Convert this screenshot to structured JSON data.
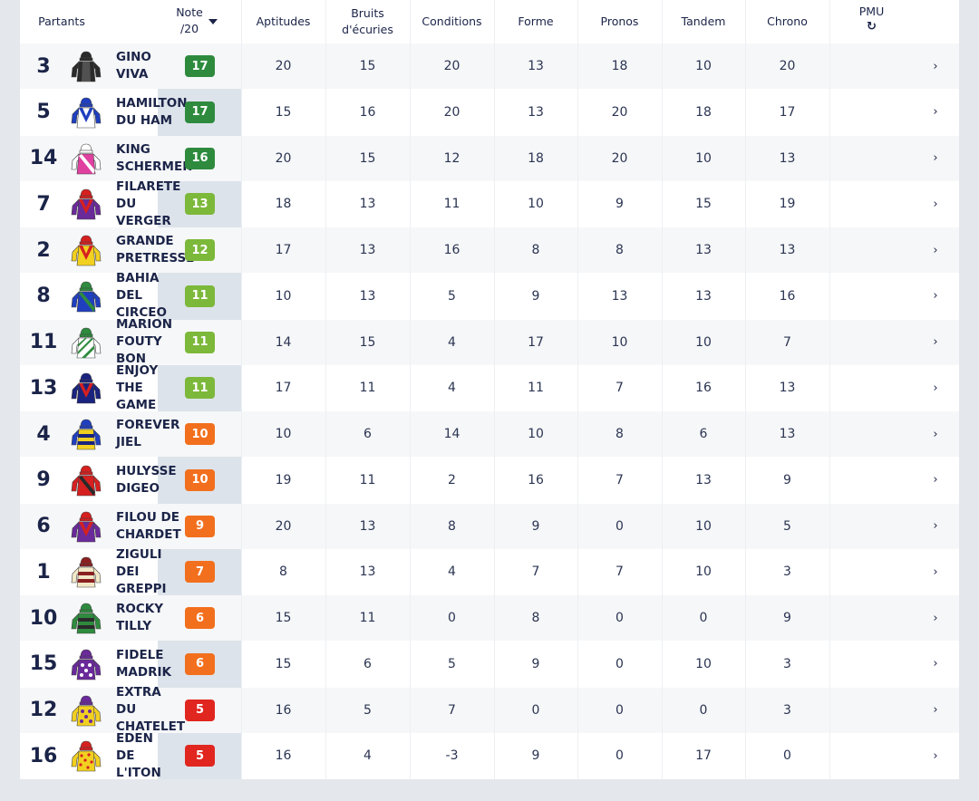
{
  "headers": {
    "partants": "Partants",
    "note_line1": "Note",
    "note_line2": "/20",
    "aptitudes": "Aptitudes",
    "bruits_line1": "Bruits",
    "bruits_line2": "d'écuries",
    "conditions": "Conditions",
    "forme": "Forme",
    "pronos": "Pronos",
    "tandem": "Tandem",
    "chrono": "Chrono",
    "pmu": "PMU",
    "pmu_icon": "↻"
  },
  "badge_colors": {
    "green_dark": "#2e8b3e",
    "green_light": "#7cb83a",
    "orange": "#f26f1d",
    "red": "#e0261f"
  },
  "rows": [
    {
      "num": "3",
      "name": "GINO\nVIVA",
      "note": "17",
      "badge": "green_dark",
      "aptitudes": "20",
      "bruits": "15",
      "conditions": "20",
      "forme": "13",
      "pronos": "18",
      "tandem": "10",
      "chrono": "20",
      "chev": "›",
      "silk": {
        "body": "#2a2a2a",
        "arms": "#2a2a2a",
        "cap": "#2a2a2a",
        "stripe": "#777777",
        "pattern": "dark"
      }
    },
    {
      "num": "5",
      "name": "HAMILTON\nDU HAM",
      "note": "17",
      "badge": "green_dark",
      "aptitudes": "15",
      "bruits": "16",
      "conditions": "20",
      "forme": "13",
      "pronos": "20",
      "tandem": "18",
      "chrono": "17",
      "chev": "›",
      "silk": {
        "body": "#ffffff",
        "arms": "#1f3fbf",
        "cap": "#1f3fbf",
        "stripe": "#1f3fbf",
        "pattern": "v"
      }
    },
    {
      "num": "14",
      "name": "KING\nSCHERMER",
      "note": "16",
      "badge": "green_dark",
      "aptitudes": "20",
      "bruits": "15",
      "conditions": "12",
      "forme": "18",
      "pronos": "20",
      "tandem": "10",
      "chrono": "13",
      "chev": "›",
      "silk": {
        "body": "#e040a0",
        "arms": "#ffffff",
        "cap": "#ffffff",
        "stripe": "#ffffff",
        "pattern": "sash"
      }
    },
    {
      "num": "7",
      "name": "FILARETE\nDU\nVERGER",
      "note": "13",
      "badge": "green_light",
      "aptitudes": "18",
      "bruits": "13",
      "conditions": "11",
      "forme": "10",
      "pronos": "9",
      "tandem": "15",
      "chrono": "19",
      "chev": "›",
      "silk": {
        "body": "#6a2a9a",
        "arms": "#6a2a9a",
        "cap": "#d62020",
        "stripe": "#d62020",
        "pattern": "v"
      }
    },
    {
      "num": "2",
      "name": "GRANDE\nPRETRESSE",
      "note": "12",
      "badge": "green_light",
      "aptitudes": "17",
      "bruits": "13",
      "conditions": "16",
      "forme": "8",
      "pronos": "8",
      "tandem": "13",
      "chrono": "13",
      "chev": "›",
      "silk": {
        "body": "#f2d020",
        "arms": "#f2d020",
        "cap": "#d62020",
        "stripe": "#d62020",
        "pattern": "v"
      }
    },
    {
      "num": "8",
      "name": "BAHIA\nDEL\nCIRCEO",
      "note": "11",
      "badge": "green_light",
      "aptitudes": "10",
      "bruits": "13",
      "conditions": "5",
      "forme": "9",
      "pronos": "13",
      "tandem": "13",
      "chrono": "16",
      "chev": "›",
      "silk": {
        "body": "#1f3fbf",
        "arms": "#1f3fbf",
        "cap": "#2e8b3e",
        "stripe": "#2e8b3e",
        "pattern": "sash"
      }
    },
    {
      "num": "11",
      "name": "MARION\nFOUTY\nBON",
      "note": "11",
      "badge": "green_light",
      "aptitudes": "14",
      "bruits": "15",
      "conditions": "4",
      "forme": "17",
      "pronos": "10",
      "tandem": "10",
      "chrono": "7",
      "chev": "›",
      "silk": {
        "body": "#ffffff",
        "arms": "#ffffff",
        "cap": "#2e8b3e",
        "stripe": "#2e8b3e",
        "pattern": "stripes"
      }
    },
    {
      "num": "13",
      "name": "ENJOY\nTHE\nGAME",
      "note": "11",
      "badge": "green_light",
      "aptitudes": "17",
      "bruits": "11",
      "conditions": "4",
      "forme": "11",
      "pronos": "7",
      "tandem": "16",
      "chrono": "13",
      "chev": "›",
      "silk": {
        "body": "#1a237e",
        "arms": "#1a237e",
        "cap": "#1a237e",
        "stripe": "#d62020",
        "pattern": "v"
      }
    },
    {
      "num": "4",
      "name": "FOREVER\nJIEL",
      "note": "10",
      "badge": "orange",
      "aptitudes": "10",
      "bruits": "6",
      "conditions": "14",
      "forme": "10",
      "pronos": "8",
      "tandem": "6",
      "chrono": "13",
      "chev": "›",
      "silk": {
        "body": "#f2d020",
        "arms": "#1f3fbf",
        "cap": "#1f3fbf",
        "stripe": "#1a237e",
        "pattern": "hoops"
      }
    },
    {
      "num": "9",
      "name": "HULYSSE\nDIGEO",
      "note": "10",
      "badge": "orange",
      "aptitudes": "19",
      "bruits": "11",
      "conditions": "2",
      "forme": "16",
      "pronos": "7",
      "tandem": "13",
      "chrono": "9",
      "chev": "›",
      "silk": {
        "body": "#d62020",
        "arms": "#d62020",
        "cap": "#d62020",
        "stripe": "#2a2a2a",
        "pattern": "sash"
      }
    },
    {
      "num": "6",
      "name": "FILOU DE\nCHARDET",
      "note": "9",
      "badge": "orange",
      "aptitudes": "20",
      "bruits": "13",
      "conditions": "8",
      "forme": "9",
      "pronos": "0",
      "tandem": "10",
      "chrono": "5",
      "chev": "›",
      "silk": {
        "body": "#6a2a9a",
        "arms": "#6a2a9a",
        "cap": "#d62020",
        "stripe": "#d62020",
        "pattern": "v"
      }
    },
    {
      "num": "1",
      "name": "ZIGULI\nDEI\nGREPPI",
      "note": "7",
      "badge": "orange",
      "aptitudes": "8",
      "bruits": "13",
      "conditions": "4",
      "forme": "7",
      "pronos": "7",
      "tandem": "10",
      "chrono": "3",
      "chev": "›",
      "silk": {
        "body": "#f2e9c8",
        "arms": "#f2e9c8",
        "cap": "#8b2020",
        "stripe": "#8b2020",
        "pattern": "hoops"
      }
    },
    {
      "num": "10",
      "name": "ROCKY\nTILLY",
      "note": "6",
      "badge": "orange",
      "aptitudes": "15",
      "bruits": "11",
      "conditions": "0",
      "forme": "8",
      "pronos": "0",
      "tandem": "0",
      "chrono": "9",
      "chev": "›",
      "silk": {
        "body": "#2e8b3e",
        "arms": "#2e8b3e",
        "cap": "#2e8b3e",
        "stripe": "#2a2a2a",
        "pattern": "hoops"
      }
    },
    {
      "num": "15",
      "name": "FIDELE\nMADRIK",
      "note": "6",
      "badge": "orange",
      "aptitudes": "15",
      "bruits": "6",
      "conditions": "5",
      "forme": "9",
      "pronos": "0",
      "tandem": "10",
      "chrono": "3",
      "chev": "›",
      "silk": {
        "body": "#6a2a9a",
        "arms": "#6a2a9a",
        "cap": "#6a2a9a",
        "stripe": "#ffffff",
        "pattern": "stars"
      }
    },
    {
      "num": "12",
      "name": "EXTRA\nDU\nCHATELET",
      "note": "5",
      "badge": "red",
      "aptitudes": "16",
      "bruits": "5",
      "conditions": "7",
      "forme": "0",
      "pronos": "0",
      "tandem": "0",
      "chrono": "3",
      "chev": "›",
      "silk": {
        "body": "#f2d020",
        "arms": "#f2d020",
        "cap": "#6a2a9a",
        "stripe": "#6a2a9a",
        "pattern": "stars"
      }
    },
    {
      "num": "16",
      "name": "EDEN\nDE\nL'ITON",
      "note": "5",
      "badge": "red",
      "aptitudes": "16",
      "bruits": "4",
      "conditions": "-3",
      "forme": "9",
      "pronos": "0",
      "tandem": "17",
      "chrono": "0",
      "chev": "›",
      "silk": {
        "body": "#f2d020",
        "arms": "#f2d020",
        "cap": "#d62020",
        "stripe": "#d62020",
        "pattern": "dots"
      }
    }
  ]
}
